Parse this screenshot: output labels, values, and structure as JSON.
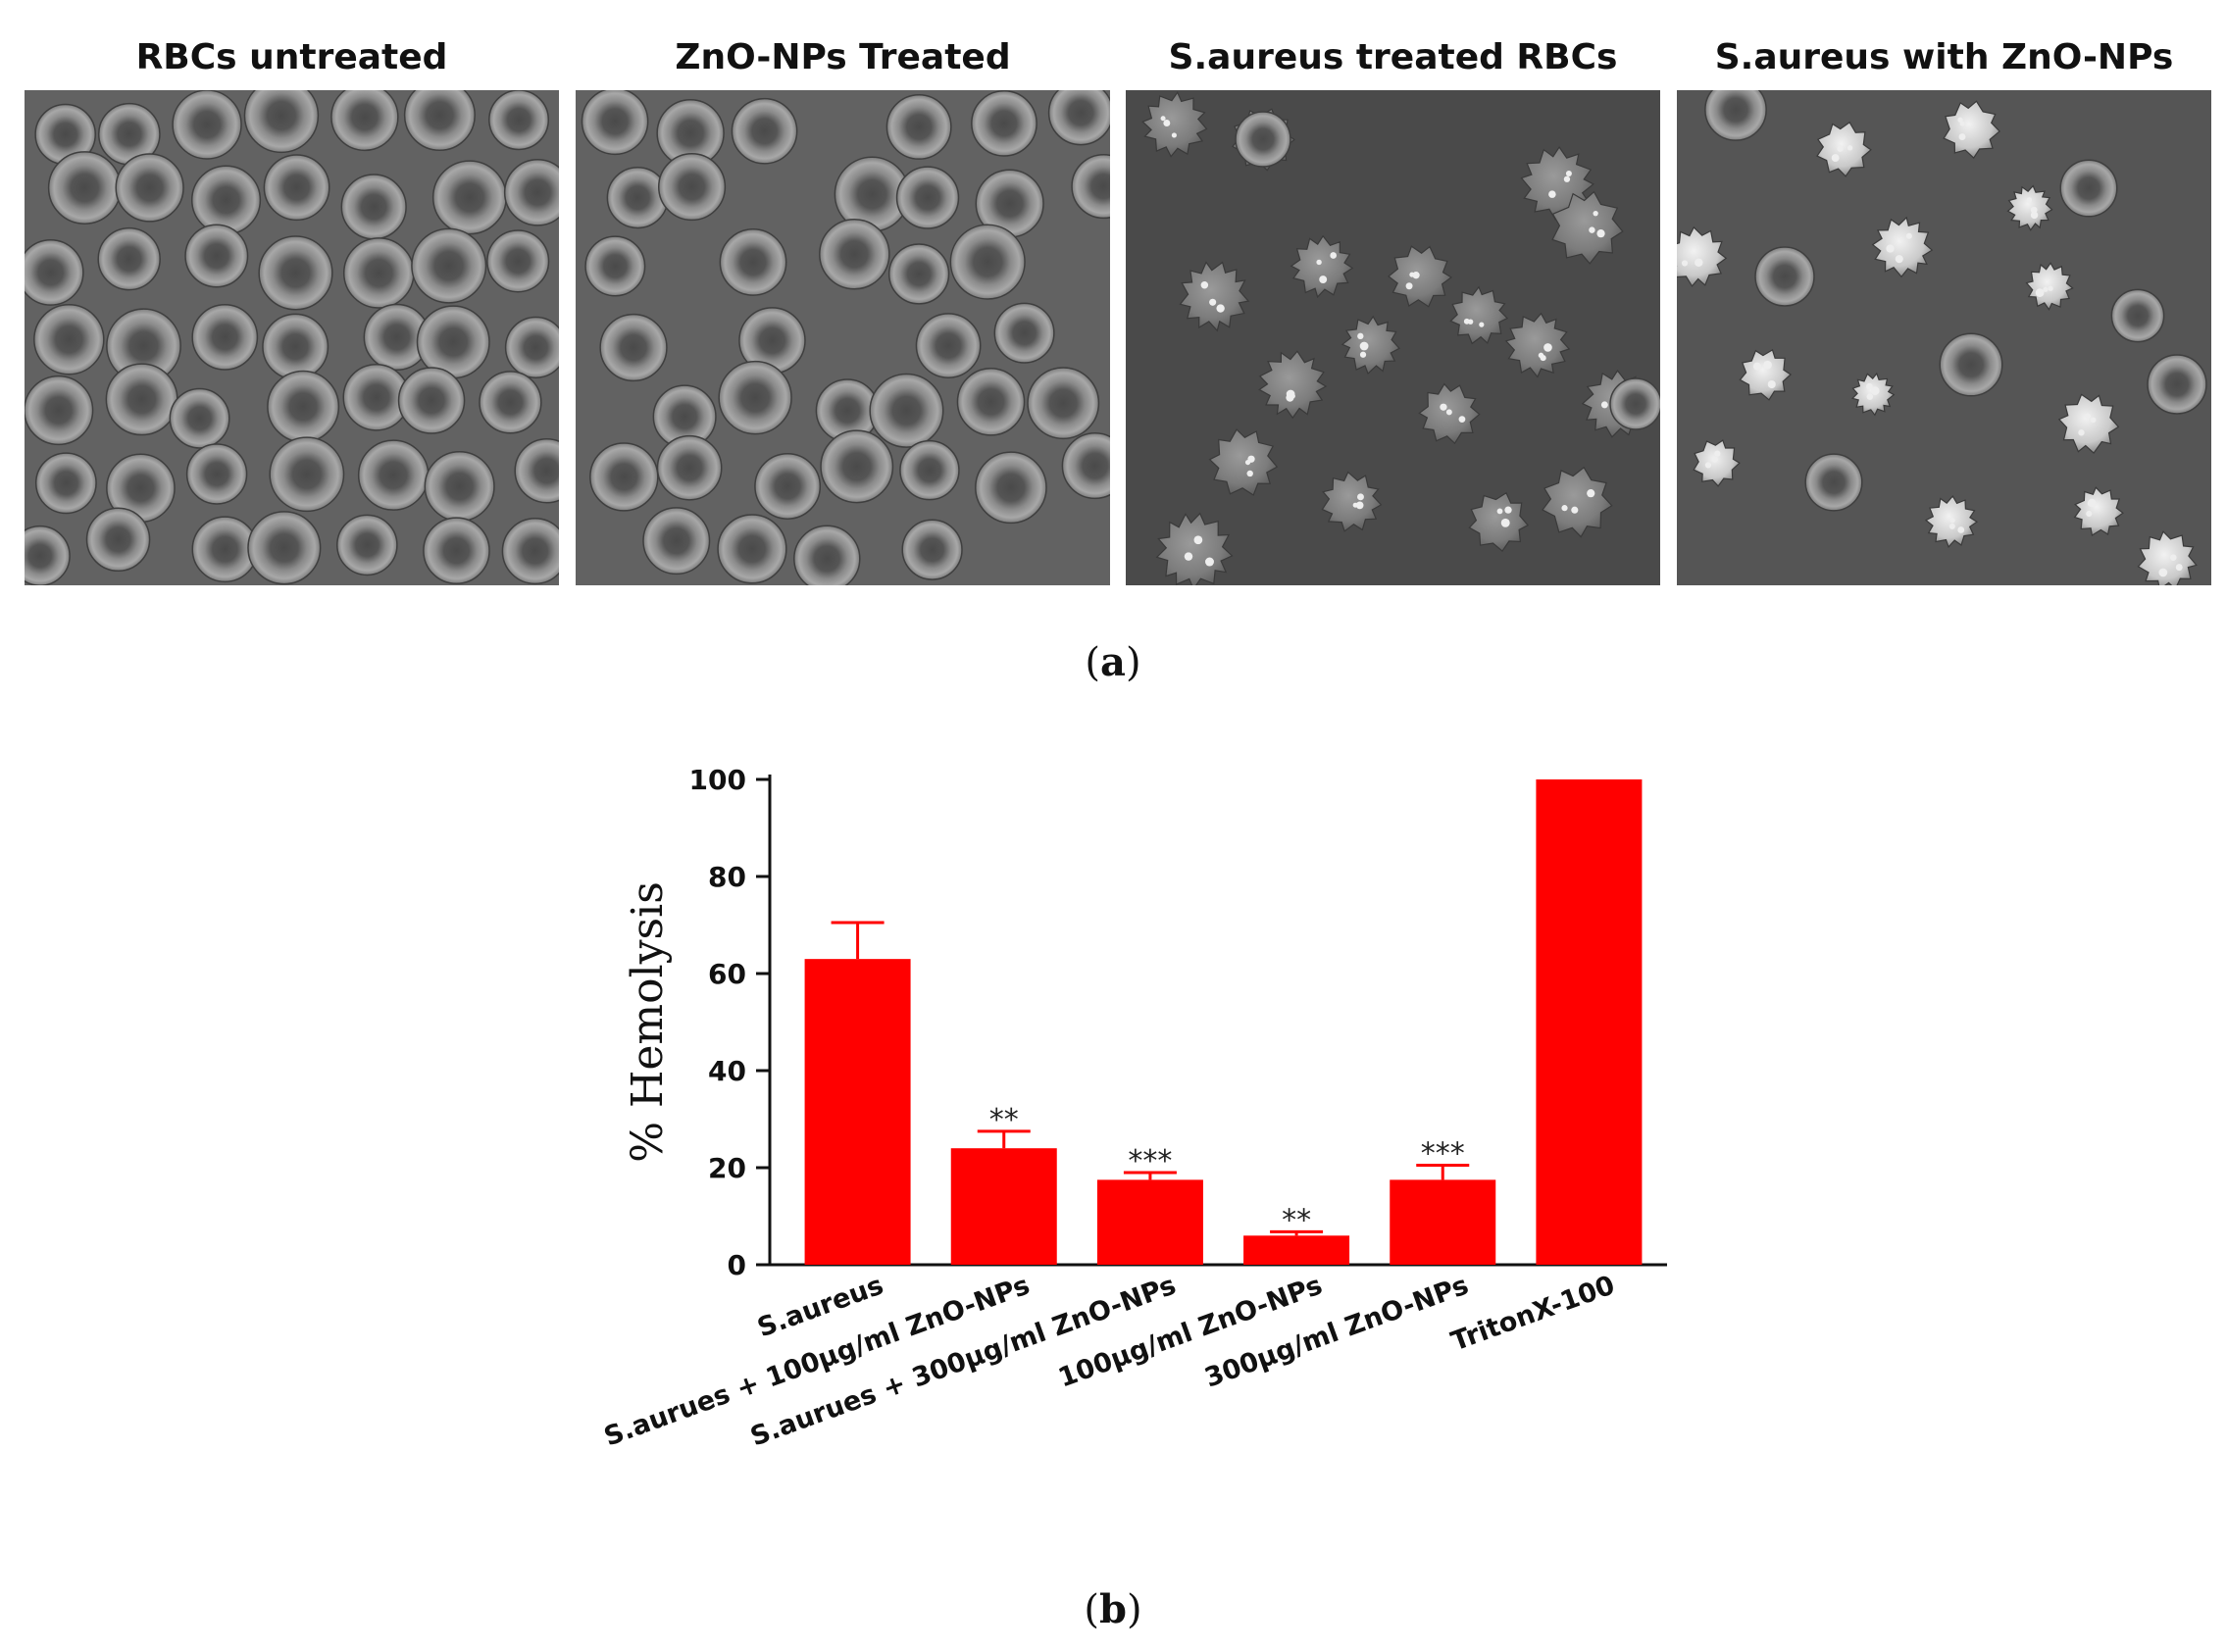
{
  "panel_a": {
    "caption_open": "(",
    "caption_letter": "a",
    "caption_close": ")",
    "panels": [
      {
        "title": "RBCs untreated",
        "kind": "normal"
      },
      {
        "title": "ZnO-NPs Treated",
        "kind": "normal-sparse"
      },
      {
        "title": "S.aureus treated RBCs",
        "kind": "spiky"
      },
      {
        "title": "S.aureus with ZnO-NPs",
        "kind": "mixed"
      }
    ]
  },
  "panel_b": {
    "caption_open": "(",
    "caption_letter": "b",
    "caption_close": ")"
  },
  "chart_data": {
    "type": "bar",
    "categories": [
      "S.aureus",
      "S.aurues + 100µg/ml ZnO-NPs",
      "S.aurues + 300µg/ml ZnO-NPs",
      "100µg/ml ZnO-NPs",
      "300µg/ml ZnO-NPs",
      "TritonX-100"
    ],
    "values": [
      63,
      24,
      17.5,
      6,
      17.5,
      100
    ],
    "errors": [
      7.5,
      3.5,
      1.5,
      0.8,
      3,
      0
    ],
    "significance": [
      "",
      "**",
      "***",
      "**",
      "***",
      ""
    ],
    "ylabel": "% Hemolysis",
    "ylim": [
      0,
      100
    ],
    "yticks": [
      0,
      20,
      40,
      60,
      80,
      100
    ],
    "bar_color": "#ff0000",
    "grid": false
  }
}
